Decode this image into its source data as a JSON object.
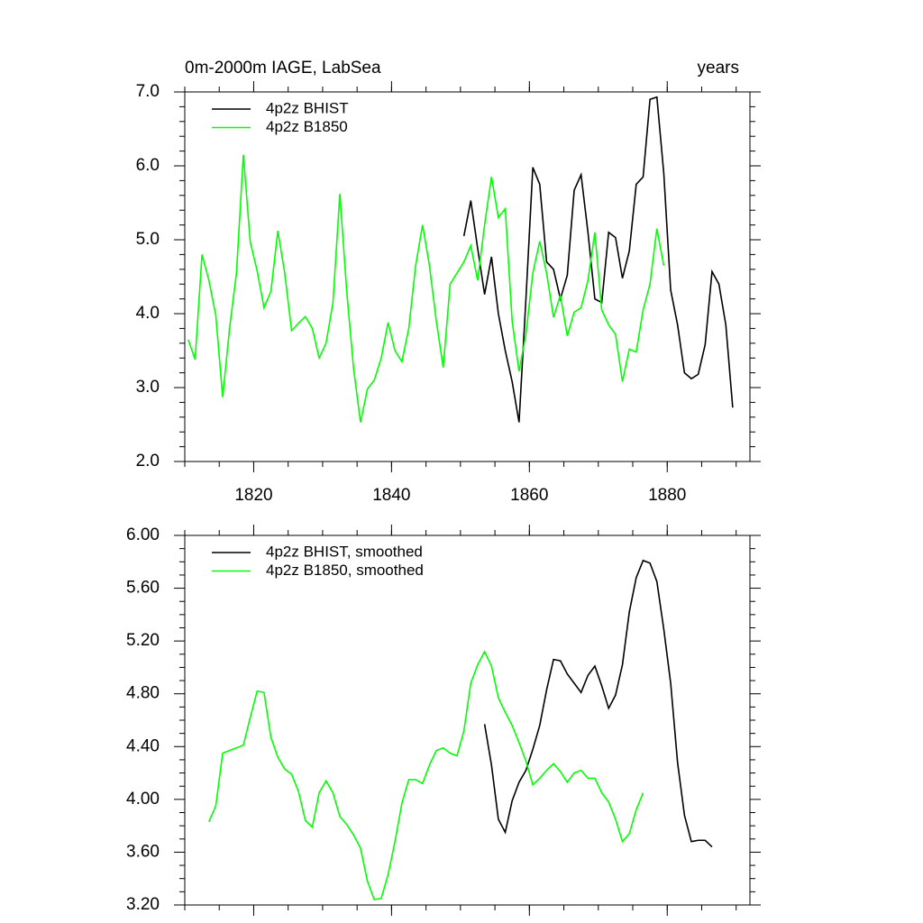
{
  "chart_data": [
    {
      "type": "line",
      "title": "0m-2000m IAGE, LabSea",
      "right_title": "years",
      "xlim": [
        1810,
        1892
      ],
      "xticks": [
        1820,
        1840,
        1860,
        1880
      ],
      "ylim": [
        2,
        7
      ],
      "yticks": [
        {
          "value": 2,
          "label": "2.0"
        },
        {
          "value": 3,
          "label": "3.0"
        },
        {
          "value": 4,
          "label": "4.0"
        },
        {
          "value": 5,
          "label": "5.0"
        },
        {
          "value": 6,
          "label": "6.0"
        },
        {
          "value": 7,
          "label": "7.0"
        }
      ],
      "series": [
        {
          "name": "4p2z BHIST",
          "color": "#000000",
          "x": [
            1850.5,
            1851.5,
            1852.5,
            1853.5,
            1854.5,
            1855.5,
            1856.5,
            1857.5,
            1858.5,
            1859.5,
            1860.5,
            1861.5,
            1862.5,
            1863.5,
            1864.5,
            1865.5,
            1866.5,
            1867.5,
            1868.5,
            1869.5,
            1870.5,
            1871.5,
            1872.5,
            1873.5,
            1874.5,
            1875.5,
            1876.5,
            1877.5,
            1878.5,
            1879.5,
            1880.5,
            1881.5,
            1882.5,
            1883.5,
            1884.5,
            1885.5,
            1886.5,
            1887.5,
            1888.5,
            1889.5
          ],
          "values": [
            5.05,
            5.53,
            4.88,
            4.26,
            4.77,
            4.0,
            3.5,
            3.08,
            2.53,
            4.2,
            5.98,
            5.75,
            4.7,
            4.6,
            4.2,
            4.52,
            5.67,
            5.88,
            5.1,
            4.2,
            4.15,
            5.1,
            5.03,
            4.48,
            4.85,
            5.75,
            5.85,
            6.9,
            6.93,
            5.9,
            4.32,
            3.85,
            3.2,
            3.12,
            3.18,
            3.58,
            4.57,
            4.4,
            3.85,
            2.73
          ]
        },
        {
          "name": "4p2z B1850",
          "color": "#00ff00",
          "x": [
            1810.5,
            1811.5,
            1812.5,
            1813.5,
            1814.5,
            1815.5,
            1816.5,
            1817.5,
            1818.5,
            1819.5,
            1820.5,
            1821.5,
            1822.5,
            1823.5,
            1824.5,
            1825.5,
            1826.5,
            1827.5,
            1828.5,
            1829.5,
            1830.5,
            1831.5,
            1832.5,
            1833.5,
            1834.5,
            1835.5,
            1836.5,
            1837.5,
            1838.5,
            1839.5,
            1840.5,
            1841.5,
            1842.5,
            1843.5,
            1844.5,
            1845.5,
            1846.5,
            1847.5,
            1848.5,
            1849.5,
            1850.5,
            1851.5,
            1852.5,
            1853.5,
            1854.5,
            1855.5,
            1856.5,
            1857.5,
            1858.5,
            1859.5,
            1860.5,
            1861.5,
            1862.5,
            1863.5,
            1864.5,
            1865.5,
            1866.5,
            1867.5,
            1868.5,
            1869.5,
            1870.5,
            1871.5,
            1872.5,
            1873.5,
            1874.5,
            1875.5,
            1876.5,
            1877.5,
            1878.5,
            1879.5
          ],
          "values": [
            3.65,
            3.38,
            4.8,
            4.45,
            3.98,
            2.87,
            3.8,
            4.55,
            6.15,
            4.97,
            4.58,
            4.08,
            4.3,
            5.12,
            4.55,
            3.77,
            3.87,
            3.96,
            3.8,
            3.4,
            3.6,
            4.15,
            5.62,
            4.3,
            3.25,
            2.53,
            2.98,
            3.1,
            3.4,
            3.88,
            3.5,
            3.35,
            3.8,
            4.65,
            5.2,
            4.65,
            3.9,
            3.27,
            4.4,
            4.55,
            4.7,
            4.92,
            4.45,
            5.2,
            5.85,
            5.3,
            5.42,
            3.9,
            3.22,
            3.72,
            4.55,
            4.98,
            4.55,
            3.95,
            4.25,
            3.7,
            4.02,
            4.08,
            4.45,
            5.1,
            4.05,
            3.85,
            3.72,
            3.08,
            3.52,
            3.48,
            4.05,
            4.4,
            5.15,
            4.65
          ]
        }
      ]
    },
    {
      "type": "line",
      "xlim": [
        1810,
        1892
      ],
      "ylim": [
        3.2,
        6
      ],
      "yticks": [
        {
          "value": 3.2,
          "label": "3.20"
        },
        {
          "value": 3.6,
          "label": "3.60"
        },
        {
          "value": 4,
          "label": "4.00"
        },
        {
          "value": 4.4,
          "label": "4.40"
        },
        {
          "value": 4.8,
          "label": "4.80"
        },
        {
          "value": 5.2,
          "label": "5.20"
        },
        {
          "value": 5.6,
          "label": "5.60"
        },
        {
          "value": 6,
          "label": "6.00"
        }
      ],
      "series": [
        {
          "name": "4p2z BHIST, smoothed",
          "color": "#000000",
          "x": [
            1853.5,
            1854.5,
            1855.5,
            1856.5,
            1857.5,
            1858.5,
            1859.5,
            1860.5,
            1861.5,
            1862.5,
            1863.5,
            1864.5,
            1865.5,
            1866.5,
            1867.5,
            1868.5,
            1869.5,
            1870.5,
            1871.5,
            1872.5,
            1873.5,
            1874.5,
            1875.5,
            1876.5,
            1877.5,
            1878.5,
            1879.5,
            1880.5,
            1881.5,
            1882.5,
            1883.5,
            1884.5,
            1885.5,
            1886.5
          ],
          "values": [
            4.57,
            4.26,
            3.85,
            3.75,
            3.99,
            4.13,
            4.22,
            4.38,
            4.56,
            4.83,
            5.06,
            5.05,
            4.95,
            4.88,
            4.81,
            4.94,
            5.01,
            4.86,
            4.69,
            4.79,
            5.02,
            5.42,
            5.68,
            5.81,
            5.79,
            5.65,
            5.29,
            4.88,
            4.28,
            3.88,
            3.68,
            3.69,
            3.69,
            3.64
          ]
        },
        {
          "name": "4p2z B1850, smoothed",
          "color": "#00ff00",
          "x": [
            1813.5,
            1814.5,
            1815.5,
            1816.5,
            1817.5,
            1818.5,
            1819.5,
            1820.5,
            1821.5,
            1822.5,
            1823.5,
            1824.5,
            1825.5,
            1826.5,
            1827.5,
            1828.5,
            1829.5,
            1830.5,
            1831.5,
            1832.5,
            1833.5,
            1834.5,
            1835.5,
            1836.5,
            1837.5,
            1838.5,
            1839.5,
            1840.5,
            1841.5,
            1842.5,
            1843.5,
            1844.5,
            1845.5,
            1846.5,
            1847.5,
            1848.5,
            1849.5,
            1850.5,
            1851.5,
            1852.5,
            1853.5,
            1854.5,
            1855.5,
            1856.5,
            1857.5,
            1858.5,
            1859.5,
            1860.5,
            1861.5,
            1862.5,
            1863.5,
            1864.5,
            1865.5,
            1866.5,
            1867.5,
            1868.5,
            1869.5,
            1870.5,
            1871.5,
            1872.5,
            1873.5,
            1874.5,
            1875.5,
            1876.5
          ],
          "values": [
            3.83,
            3.95,
            4.35,
            4.37,
            4.39,
            4.41,
            4.62,
            4.82,
            4.81,
            4.47,
            4.32,
            4.23,
            4.19,
            4.06,
            3.84,
            3.79,
            4.05,
            4.14,
            4.05,
            3.87,
            3.81,
            3.73,
            3.63,
            3.38,
            3.24,
            3.25,
            3.43,
            3.68,
            3.97,
            4.15,
            4.15,
            4.12,
            4.26,
            4.37,
            4.39,
            4.35,
            4.33,
            4.52,
            4.88,
            5.02,
            5.12,
            5.01,
            4.77,
            4.66,
            4.56,
            4.43,
            4.29,
            4.11,
            4.16,
            4.22,
            4.27,
            4.21,
            4.13,
            4.2,
            4.22,
            4.16,
            4.16,
            4.05,
            3.98,
            3.85,
            3.68,
            3.74,
            3.92,
            4.05
          ]
        }
      ]
    }
  ]
}
